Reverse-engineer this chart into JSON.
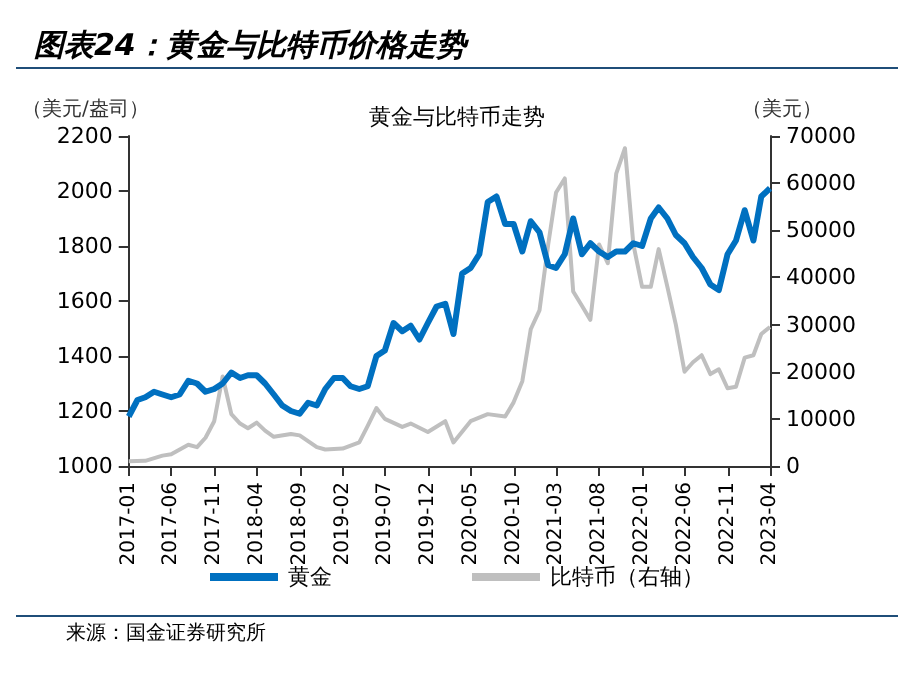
{
  "chart_data": {
    "type": "line",
    "title": "图表24：黄金与比特币价格走势",
    "subtitle": "黄金与比特币走势",
    "ylabel": "（美元/盎司）",
    "y2label": "（美元）",
    "annotations": [
      "来源：国金证券研究所"
    ],
    "xlim": [
      "2017-01",
      "2023-04"
    ],
    "xticks": [
      "2017-01",
      "2017-06",
      "2017-11",
      "2018-04",
      "2018-09",
      "2019-02",
      "2019-07",
      "2019-12",
      "2020-05",
      "2020-10",
      "2021-03",
      "2021-08",
      "2022-01",
      "2022-06",
      "2022-11",
      "2023-04"
    ],
    "ylim": [
      1000,
      2200
    ],
    "yticks": [
      1000,
      1200,
      1400,
      1600,
      1800,
      2000,
      2200
    ],
    "y2lim": [
      0,
      70000
    ],
    "y2ticks": [
      0,
      10000,
      20000,
      30000,
      40000,
      50000,
      60000,
      70000
    ],
    "grid": false,
    "legend": "bottom",
    "marker": "none",
    "line_style": "solid",
    "series": [
      {
        "name": "黄金",
        "color": "#0070c0",
        "x": [
          "2017-01",
          "2017-02",
          "2017-03",
          "2017-04",
          "2017-05",
          "2017-06",
          "2017-07",
          "2017-08",
          "2017-09",
          "2017-10",
          "2017-11",
          "2017-12",
          "2018-01",
          "2018-02",
          "2018-03",
          "2018-04",
          "2018-05",
          "2018-06",
          "2018-07",
          "2018-08",
          "2018-09",
          "2018-10",
          "2018-11",
          "2018-12",
          "2019-01",
          "2019-02",
          "2019-03",
          "2019-04",
          "2019-05",
          "2019-06",
          "2019-07",
          "2019-08",
          "2019-09",
          "2019-10",
          "2019-11",
          "2019-12",
          "2020-01",
          "2020-02",
          "2020-03",
          "2020-04",
          "2020-05",
          "2020-06",
          "2020-07",
          "2020-08",
          "2020-09",
          "2020-10",
          "2020-11",
          "2020-12",
          "2021-01",
          "2021-02",
          "2021-03",
          "2021-04",
          "2021-05",
          "2021-06",
          "2021-07",
          "2021-08",
          "2021-09",
          "2021-10",
          "2021-11",
          "2021-12",
          "2022-01",
          "2022-02",
          "2022-03",
          "2022-04",
          "2022-05",
          "2022-06",
          "2022-07",
          "2022-08",
          "2022-09",
          "2022-10",
          "2022-11",
          "2022-12",
          "2023-01",
          "2023-02",
          "2023-03",
          "2023-04"
        ],
        "values": [
          1180,
          1240,
          1250,
          1270,
          1260,
          1250,
          1260,
          1310,
          1300,
          1270,
          1280,
          1300,
          1340,
          1320,
          1330,
          1330,
          1300,
          1260,
          1220,
          1200,
          1190,
          1230,
          1220,
          1280,
          1320,
          1320,
          1290,
          1280,
          1290,
          1400,
          1420,
          1520,
          1490,
          1510,
          1460,
          1520,
          1580,
          1590,
          1480,
          1700,
          1720,
          1770,
          1960,
          1980,
          1880,
          1880,
          1780,
          1890,
          1850,
          1730,
          1720,
          1770,
          1900,
          1770,
          1810,
          1780,
          1760,
          1780,
          1780,
          1810,
          1800,
          1900,
          1940,
          1900,
          1840,
          1810,
          1760,
          1720,
          1660,
          1640,
          1770,
          1820,
          1930,
          1820,
          1980,
          2010
        ]
      },
      {
        "name": "比特币（右轴）",
        "color": "#bfbfbf",
        "axis": "y2",
        "x": [
          "2017-01",
          "2017-03",
          "2017-05",
          "2017-06",
          "2017-08",
          "2017-09",
          "2017-10",
          "2017-11",
          "2017-12",
          "2018-01",
          "2018-02",
          "2018-03",
          "2018-04",
          "2018-05",
          "2018-06",
          "2018-08",
          "2018-09",
          "2018-11",
          "2018-12",
          "2019-02",
          "2019-04",
          "2019-05",
          "2019-06",
          "2019-07",
          "2019-09",
          "2019-10",
          "2019-12",
          "2020-02",
          "2020-03",
          "2020-05",
          "2020-07",
          "2020-09",
          "2020-10",
          "2020-11",
          "2020-12",
          "2021-01",
          "2021-02",
          "2021-03",
          "2021-04",
          "2021-05",
          "2021-06",
          "2021-07",
          "2021-08",
          "2021-09",
          "2021-10",
          "2021-11",
          "2021-12",
          "2022-01",
          "2022-02",
          "2022-03",
          "2022-04",
          "2022-05",
          "2022-06",
          "2022-07",
          "2022-08",
          "2022-09",
          "2022-10",
          "2022-11",
          "2022-12",
          "2023-01",
          "2023-02",
          "2023-03",
          "2023-04"
        ],
        "values": [
          1000,
          1100,
          2200,
          2500,
          4500,
          4000,
          6000,
          9500,
          19000,
          11000,
          9000,
          8000,
          9200,
          7500,
          6200,
          6800,
          6500,
          4000,
          3500,
          3700,
          5000,
          8500,
          12300,
          10000,
          8300,
          9000,
          7200,
          9500,
          5000,
          9500,
          11000,
          10500,
          13500,
          18000,
          29000,
          33000,
          47000,
          58000,
          61000,
          37000,
          34000,
          31000,
          47000,
          43000,
          62000,
          67400,
          47000,
          38000,
          38000,
          46000,
          38000,
          30000,
          20000,
          22000,
          23500,
          19500,
          20500,
          16500,
          16800,
          23000,
          23500,
          28000,
          29500
        ]
      }
    ]
  }
}
